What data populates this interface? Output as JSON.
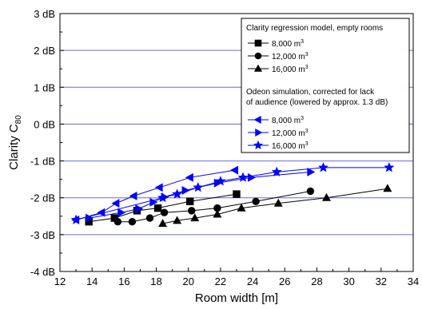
{
  "chart_data": {
    "type": "line",
    "xlabel": "Room width [m]",
    "ylabel": {
      "main": "Clarity C",
      "sub": "80"
    },
    "xlim": [
      12,
      34
    ],
    "ylim": [
      -4,
      3
    ],
    "x_ticks": [
      "12",
      "14",
      "16",
      "18",
      "20",
      "22",
      "24",
      "26",
      "28",
      "30",
      "32",
      "34"
    ],
    "y_ticks": [
      "3 dB",
      "2 dB",
      "1 dB",
      "0 dB",
      "-1 dB",
      "-2 dB",
      "-3 dB",
      "-4 dB"
    ],
    "y_tick_values": [
      3,
      2,
      1,
      0,
      -1,
      -2,
      -3,
      -4
    ],
    "grid": "horizontal",
    "legend_placement": "top-right",
    "legend": {
      "group1_title": "Clarity regression model, empty rooms",
      "group2_title_line1": "Odeon simulation, corrected for lack",
      "group2_title_line2": "of audience (lowered by approx. 1.3 dB)",
      "unit_superscript": "3",
      "entries": [
        {
          "label": "8,000 m"
        },
        {
          "label": "12,000 m"
        },
        {
          "label": "16,000 m"
        },
        {
          "label": "8,000 m"
        },
        {
          "label": "12,000 m"
        },
        {
          "label": "16,000 m"
        }
      ]
    },
    "series": [
      {
        "group": "Clarity regression model, empty rooms",
        "name": "8,000 m3",
        "marker": "square",
        "color": "#000000",
        "points": [
          [
            13.8,
            -2.65
          ],
          [
            15.4,
            -2.55
          ],
          [
            16.8,
            -2.35
          ],
          [
            18.1,
            -2.28
          ],
          [
            20.1,
            -2.1
          ],
          [
            23.0,
            -1.9
          ]
        ]
      },
      {
        "group": "Clarity regression model, empty rooms",
        "name": "12,000 m3",
        "marker": "circle",
        "color": "#000000",
        "points": [
          [
            15.6,
            -2.65
          ],
          [
            16.5,
            -2.65
          ],
          [
            17.6,
            -2.55
          ],
          [
            18.5,
            -2.4
          ],
          [
            20.2,
            -2.35
          ],
          [
            21.8,
            -2.28
          ],
          [
            24.2,
            -2.1
          ],
          [
            27.6,
            -1.82
          ]
        ]
      },
      {
        "group": "Clarity regression model, empty rooms",
        "name": "16,000 m3",
        "marker": "triangle-up",
        "color": "#000000",
        "points": [
          [
            18.4,
            -2.7
          ],
          [
            19.3,
            -2.62
          ],
          [
            20.4,
            -2.55
          ],
          [
            21.8,
            -2.45
          ],
          [
            23.3,
            -2.28
          ],
          [
            25.6,
            -2.15
          ],
          [
            28.6,
            -2.0
          ],
          [
            32.4,
            -1.75
          ]
        ]
      },
      {
        "group": "Odeon simulation, corrected for lack of audience (lowered by approx. 1.3 dB)",
        "name": "8,000 m3",
        "marker": "triangle-left",
        "color": "#0000ff",
        "points": [
          [
            13.0,
            -2.6
          ],
          [
            14.6,
            -2.4
          ],
          [
            15.5,
            -2.15
          ],
          [
            16.6,
            -1.95
          ],
          [
            18.2,
            -1.72
          ],
          [
            20.1,
            -1.45
          ],
          [
            22.9,
            -1.25
          ]
        ]
      },
      {
        "group": "Odeon simulation, corrected for lack of audience (lowered by approx. 1.3 dB)",
        "name": "12,000 m3",
        "marker": "triangle-right",
        "color": "#0000ff",
        "points": [
          [
            13.8,
            -2.55
          ],
          [
            15.8,
            -2.4
          ],
          [
            16.9,
            -2.3
          ],
          [
            17.8,
            -2.12
          ],
          [
            18.5,
            -1.98
          ],
          [
            19.8,
            -1.8
          ],
          [
            21.8,
            -1.6
          ],
          [
            23.9,
            -1.45
          ],
          [
            27.6,
            -1.3
          ]
        ]
      },
      {
        "group": "Odeon simulation, corrected for lack of audience (lowered by approx. 1.3 dB)",
        "name": "16,000 m3",
        "marker": "star",
        "color": "#0000ff",
        "points": [
          [
            13.0,
            -2.6
          ],
          [
            18.4,
            -2.0
          ],
          [
            19.3,
            -1.9
          ],
          [
            20.6,
            -1.72
          ],
          [
            22.0,
            -1.55
          ],
          [
            23.4,
            -1.45
          ],
          [
            25.5,
            -1.3
          ],
          [
            28.4,
            -1.18
          ],
          [
            32.5,
            -1.18
          ]
        ]
      }
    ]
  }
}
